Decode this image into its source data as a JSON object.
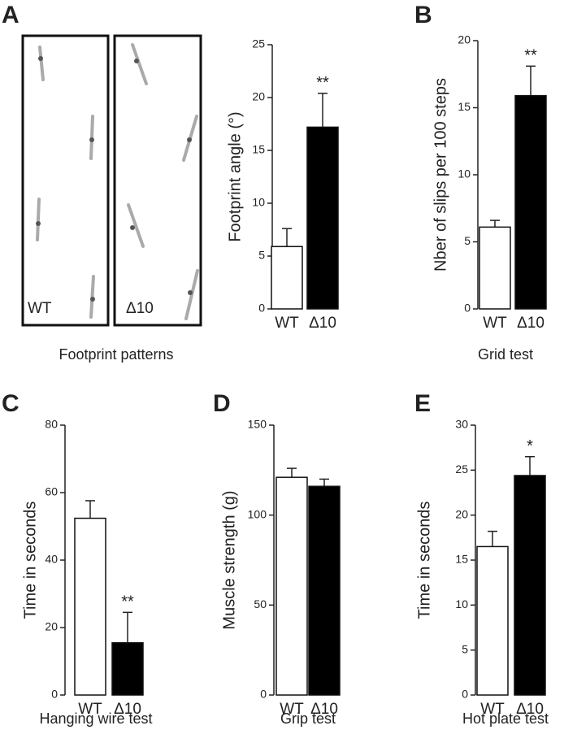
{
  "footprint_panel": {
    "letter": "A",
    "labels": [
      "WT",
      "Δ10"
    ],
    "caption": "Footprint patterns"
  },
  "chart_data": [
    {
      "type": "bar",
      "ylabel": "Footprint angle (°)",
      "categories": [
        "WT",
        "Δ10"
      ],
      "values": [
        5.9,
        17.2
      ],
      "errors": [
        1.7,
        3.2
      ],
      "colors": [
        "#ffffff",
        "#000000"
      ],
      "annotations": [
        null,
        "**"
      ],
      "ylim": [
        0,
        25
      ],
      "yticks": [
        0,
        5,
        10,
        15,
        20,
        25
      ]
    },
    {
      "type": "bar",
      "letter": "B",
      "caption": "Grid test",
      "ylabel": "Nber of slips per 100 steps",
      "categories": [
        "WT",
        "Δ10"
      ],
      "values": [
        6.1,
        15.9
      ],
      "errors": [
        0.5,
        2.2
      ],
      "colors": [
        "#ffffff",
        "#000000"
      ],
      "annotations": [
        null,
        "**"
      ],
      "ylim": [
        0,
        20
      ],
      "yticks": [
        0,
        5,
        10,
        15,
        20
      ]
    },
    {
      "type": "bar",
      "letter": "C",
      "caption": "Hanging wire test",
      "ylabel": "Time in seconds",
      "categories": [
        "WT",
        "Δ10"
      ],
      "values": [
        52.4,
        15.5
      ],
      "errors": [
        5.2,
        9
      ],
      "colors": [
        "#ffffff",
        "#000000"
      ],
      "annotations": [
        null,
        "**"
      ],
      "ylim": [
        0,
        80
      ],
      "yticks": [
        0,
        20,
        40,
        60,
        80
      ]
    },
    {
      "type": "bar",
      "letter": "D",
      "caption": "Grip test",
      "ylabel": "Muscle strength (g)",
      "categories": [
        "WT",
        "Δ10"
      ],
      "values": [
        121,
        116
      ],
      "errors": [
        5,
        4
      ],
      "colors": [
        "#ffffff",
        "#000000"
      ],
      "ylim": [
        0,
        150
      ],
      "yticks": [
        0,
        50,
        100,
        150
      ]
    },
    {
      "type": "bar",
      "letter": "E",
      "caption": "Hot plate test",
      "ylabel": "Time in seconds",
      "categories": [
        "WT",
        "Δ10"
      ],
      "values": [
        16.5,
        24.4
      ],
      "errors": [
        1.7,
        2.1
      ],
      "colors": [
        "#ffffff",
        "#000000"
      ],
      "annotations": [
        null,
        "*"
      ],
      "ylim": [
        0,
        30
      ],
      "yticks": [
        0,
        5,
        10,
        15,
        20,
        25,
        30
      ]
    }
  ]
}
